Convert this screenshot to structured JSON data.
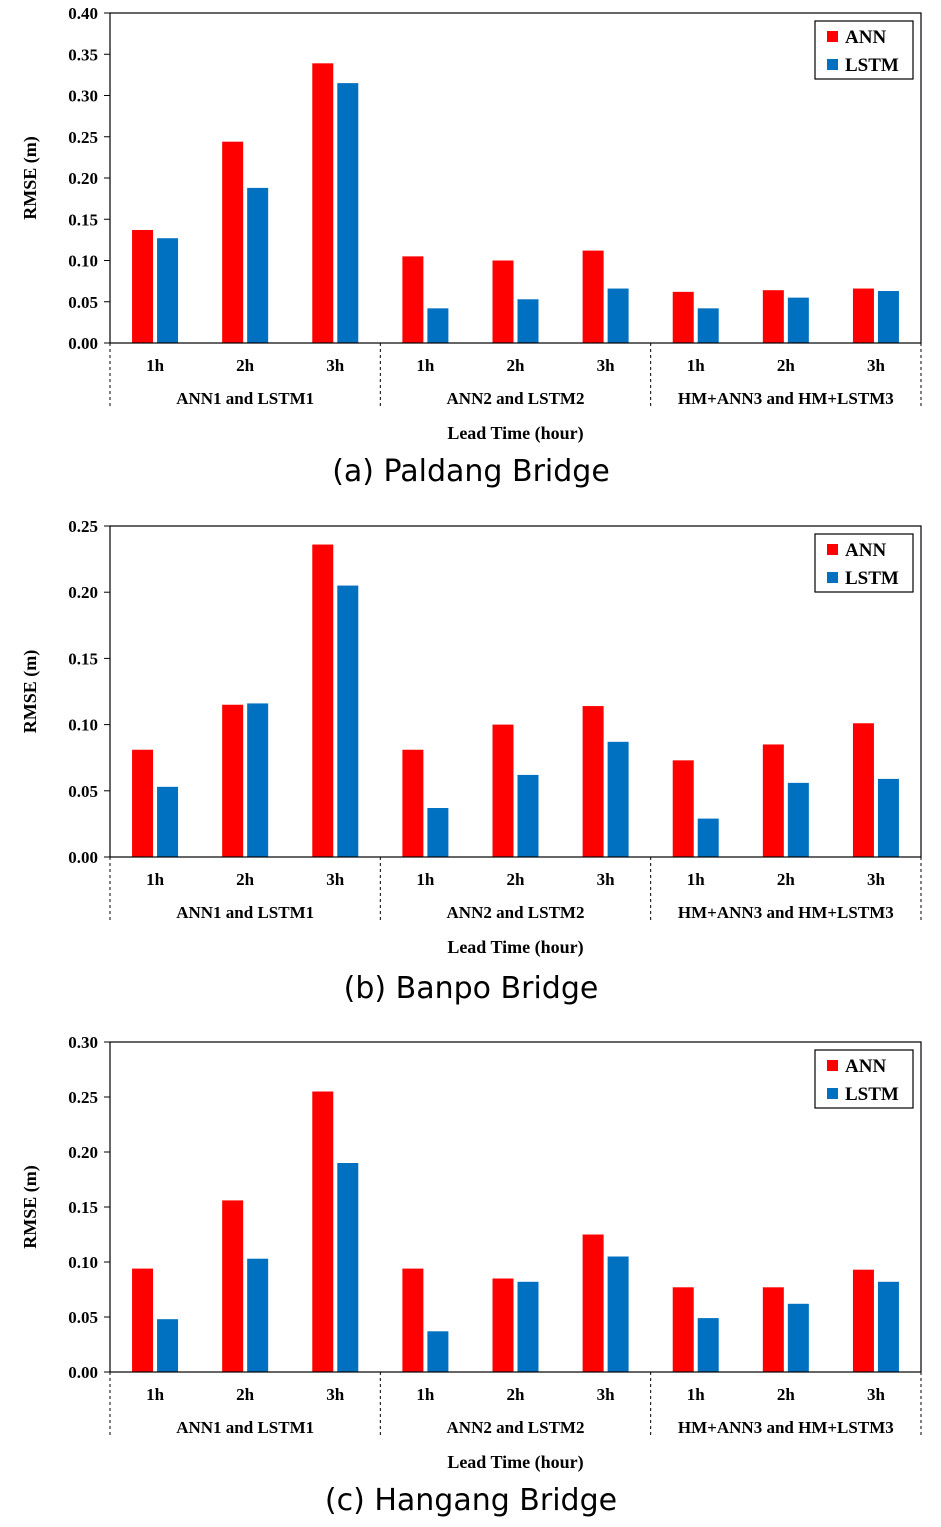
{
  "chart_data": [
    {
      "type": "bar",
      "caption": "(a) Paldang Bridge",
      "ylabel": "RMSE (m)",
      "xlabel": "Lead Time (hour)",
      "ylim": [
        0,
        0.4
      ],
      "yticks": [
        "0.00",
        "0.05",
        "0.10",
        "0.15",
        "0.20",
        "0.25",
        "0.30",
        "0.35",
        "0.40"
      ],
      "categories": [
        "1h",
        "2h",
        "3h",
        "1h",
        "2h",
        "3h",
        "1h",
        "2h",
        "3h"
      ],
      "groups": [
        "ANN1 and LSTM1",
        "ANN2 and LSTM2",
        "HM+ANN3 and HM+LSTM3"
      ],
      "legend": [
        "ANN",
        "LSTM"
      ],
      "series": [
        {
          "name": "ANN",
          "color": "#ff0000",
          "values": [
            0.137,
            0.244,
            0.339,
            0.105,
            0.1,
            0.112,
            0.062,
            0.064,
            0.066
          ]
        },
        {
          "name": "LSTM",
          "color": "#0070c0",
          "values": [
            0.127,
            0.188,
            0.315,
            0.042,
            0.053,
            0.066,
            0.042,
            0.055,
            0.063
          ]
        }
      ]
    },
    {
      "type": "bar",
      "caption": "(b) Banpo Bridge",
      "ylabel": "RMSE (m)",
      "xlabel": "Lead Time (hour)",
      "ylim": [
        0,
        0.25
      ],
      "yticks": [
        "0.00",
        "0.05",
        "0.10",
        "0.15",
        "0.20",
        "0.25"
      ],
      "categories": [
        "1h",
        "2h",
        "3h",
        "1h",
        "2h",
        "3h",
        "1h",
        "2h",
        "3h"
      ],
      "groups": [
        "ANN1 and LSTM1",
        "ANN2 and LSTM2",
        "HM+ANN3 and HM+LSTM3"
      ],
      "legend": [
        "ANN",
        "LSTM"
      ],
      "series": [
        {
          "name": "ANN",
          "color": "#ff0000",
          "values": [
            0.081,
            0.115,
            0.236,
            0.081,
            0.1,
            0.114,
            0.073,
            0.085,
            0.101
          ]
        },
        {
          "name": "LSTM",
          "color": "#0070c0",
          "values": [
            0.053,
            0.116,
            0.205,
            0.037,
            0.062,
            0.087,
            0.029,
            0.056,
            0.059
          ]
        }
      ]
    },
    {
      "type": "bar",
      "caption": "(c) Hangang Bridge",
      "ylabel": "RMSE (m)",
      "xlabel": "Lead Time (hour)",
      "ylim": [
        0,
        0.3
      ],
      "yticks": [
        "0.00",
        "0.05",
        "0.10",
        "0.15",
        "0.20",
        "0.25",
        "0.30"
      ],
      "categories": [
        "1h",
        "2h",
        "3h",
        "1h",
        "2h",
        "3h",
        "1h",
        "2h",
        "3h"
      ],
      "groups": [
        "ANN1 and LSTM1",
        "ANN2 and LSTM2",
        "HM+ANN3 and HM+LSTM3"
      ],
      "legend": [
        "ANN",
        "LSTM"
      ],
      "series": [
        {
          "name": "ANN",
          "color": "#ff0000",
          "values": [
            0.094,
            0.156,
            0.255,
            0.094,
            0.085,
            0.125,
            0.077,
            0.077,
            0.093
          ]
        },
        {
          "name": "LSTM",
          "color": "#0070c0",
          "values": [
            0.048,
            0.103,
            0.19,
            0.037,
            0.082,
            0.105,
            0.049,
            0.062,
            0.082
          ]
        }
      ]
    }
  ]
}
